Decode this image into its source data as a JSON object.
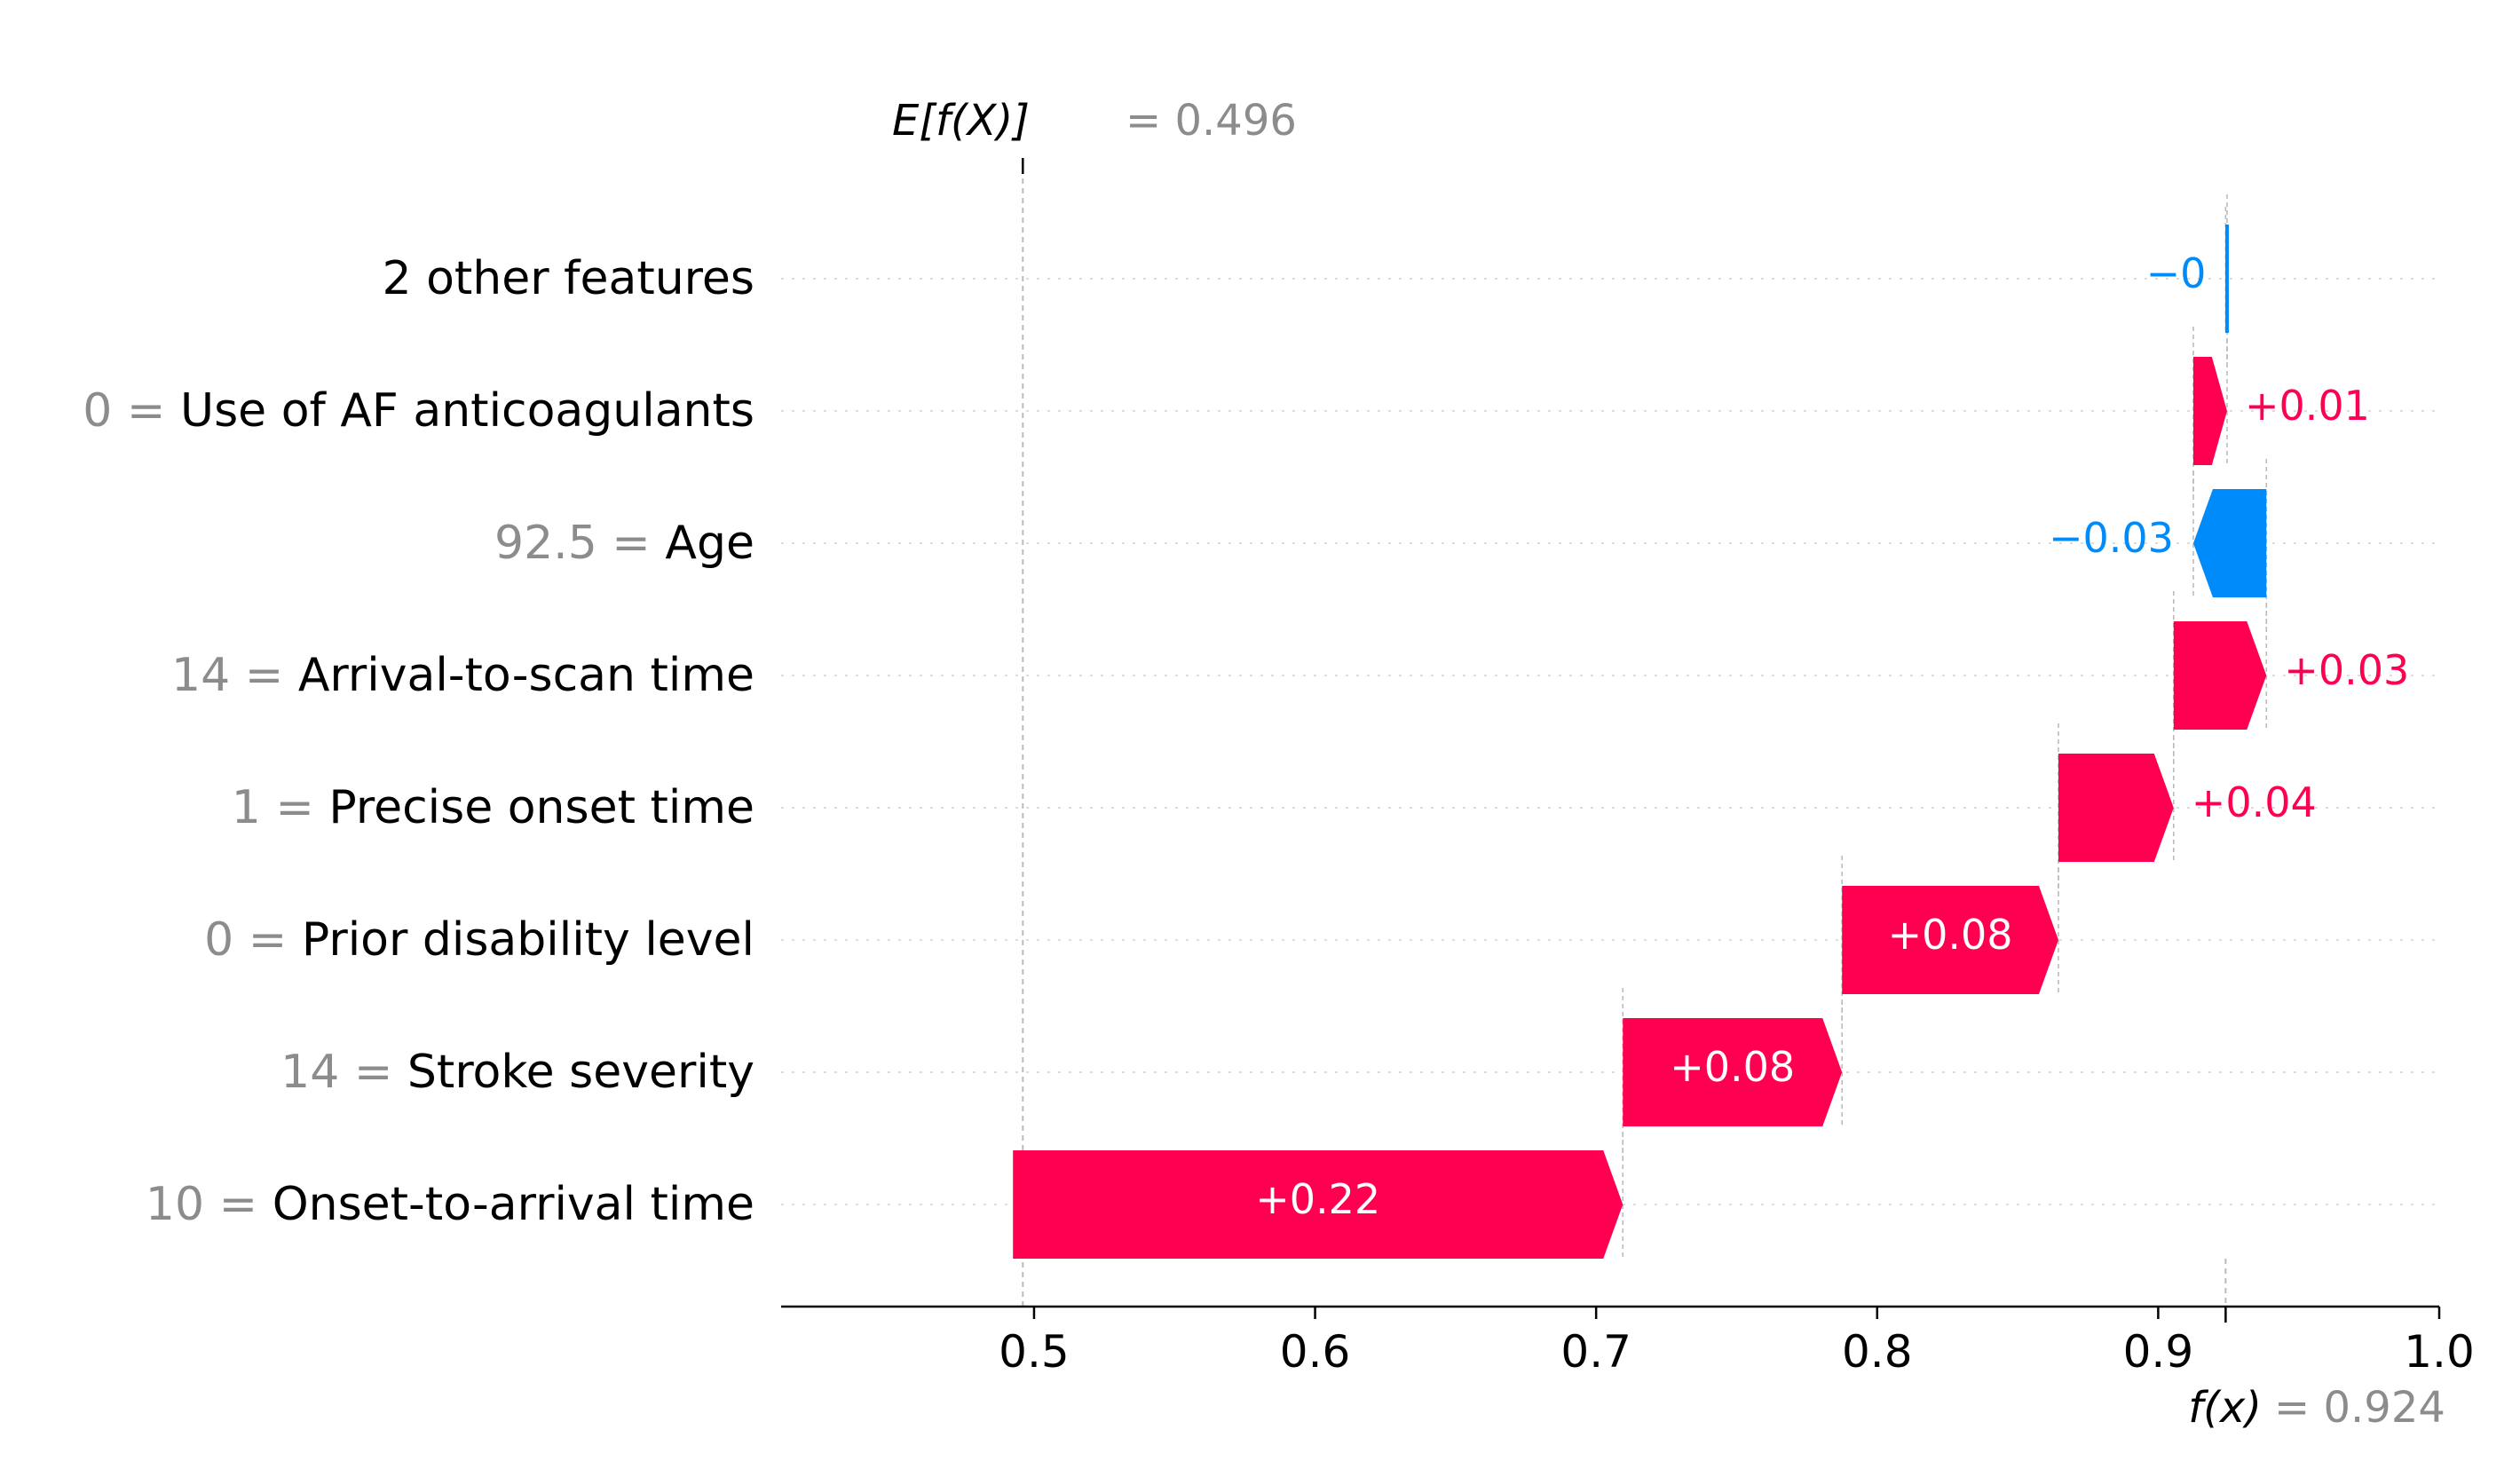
{
  "chart_data": {
    "type": "waterfall",
    "base": {
      "label": "E[f(X)]",
      "equals": "= 0.496",
      "value": 0.496
    },
    "output": {
      "label": "f(x)",
      "equals": "= 0.924",
      "value": 0.924
    },
    "xlim": [
      0.41,
      1.0
    ],
    "xticks": [
      0.5,
      0.6,
      0.7,
      0.8,
      0.9,
      1.0
    ],
    "tick_labels": [
      "0.5",
      "0.6",
      "0.7",
      "0.8",
      "0.9",
      "1.0"
    ],
    "grid": "dotted horizontal row lines",
    "features": [
      {
        "value_text": "",
        "name": "2 other features",
        "contribution": -0.0005,
        "label": "−0"
      },
      {
        "value_text": "0 =",
        "name": "Use of AF anticoagulants",
        "contribution": 0.012,
        "label": "+0.01"
      },
      {
        "value_text": "92.5 =",
        "name": "Age",
        "contribution": -0.026,
        "label": "−0.03"
      },
      {
        "value_text": "14 =",
        "name": "Arrival-to-scan time",
        "contribution": 0.033,
        "label": "+0.03"
      },
      {
        "value_text": "1 =",
        "name": "Precise onset time",
        "contribution": 0.041,
        "label": "+0.04"
      },
      {
        "value_text": "0 =",
        "name": "Prior disability level",
        "contribution": 0.077,
        "label": "+0.08"
      },
      {
        "value_text": "14 =",
        "name": "Stroke severity",
        "contribution": 0.078,
        "label": "+0.08"
      },
      {
        "value_text": "10 =",
        "name": "Onset-to-arrival time",
        "contribution": 0.217,
        "label": "+0.22"
      }
    ],
    "colors": {
      "positive": "#ff0051",
      "negative": "#008bfb",
      "label_gray": "#8c8c8c",
      "connector": "#bbbbbb"
    }
  }
}
